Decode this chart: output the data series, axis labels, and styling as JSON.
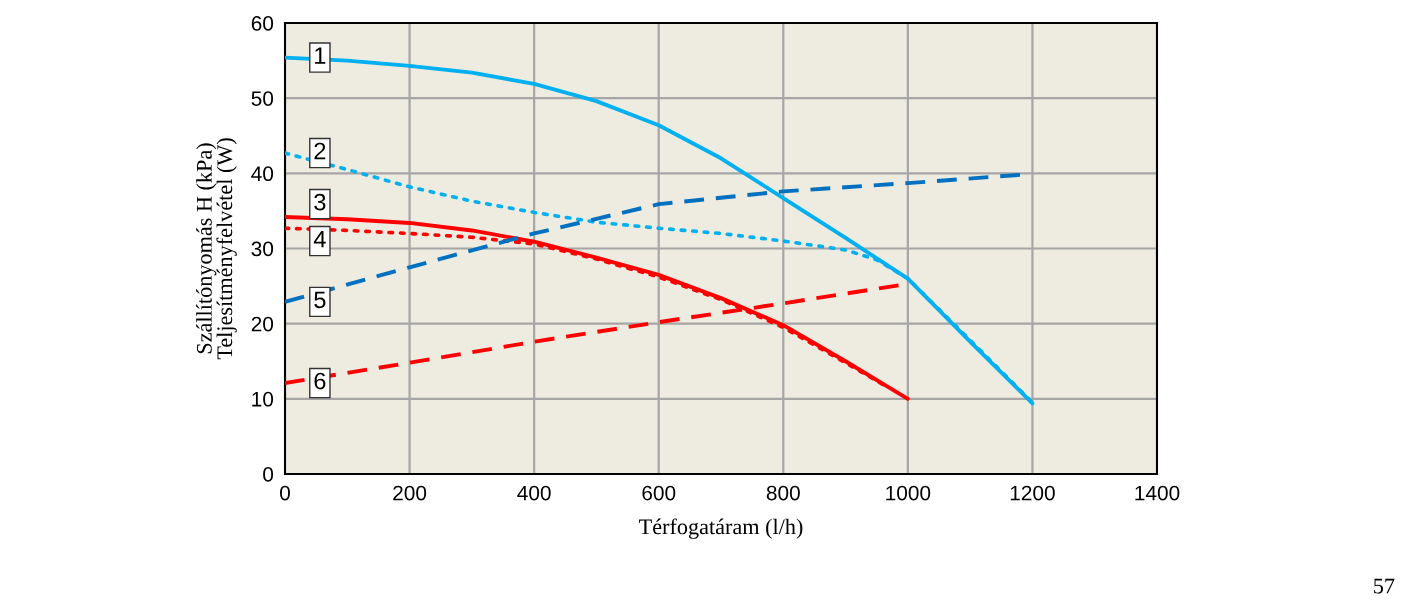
{
  "chart_data": {
    "type": "line",
    "xlabel": "Térfogatáram (l/h)",
    "ylabel": "Szállítónyomás H (kPa)\nTeljesítményfelvétel (W)",
    "xlim": [
      0,
      1400
    ],
    "xticks": [
      0,
      200,
      400,
      600,
      800,
      1000,
      1200,
      1400
    ],
    "ylim": [
      0,
      60
    ],
    "yticks": [
      0,
      10,
      20,
      30,
      40,
      50,
      60
    ],
    "grid": true,
    "legend": false,
    "marker": "none",
    "annotations": [
      "57"
    ],
    "series": [
      {
        "name": "1",
        "color": "#00b0f0",
        "line_style": "solid",
        "x": [
          0,
          100,
          200,
          300,
          400,
          500,
          600,
          700,
          800,
          900,
          1000,
          1100,
          1200
        ],
        "values": [
          55.4,
          55.0,
          54.3,
          53.4,
          51.9,
          49.6,
          46.4,
          42.0,
          36.7,
          31.4,
          26.0,
          17.6,
          9.4
        ]
      },
      {
        "name": "2",
        "color": "#00b0f0",
        "line_style": "dotted",
        "x": [
          0,
          100,
          200,
          300,
          400,
          500,
          600,
          700,
          800,
          900,
          950,
          1000,
          1100,
          1200
        ],
        "values": [
          42.7,
          40.5,
          38.2,
          36.3,
          34.8,
          33.5,
          32.7,
          32.0,
          31.0,
          29.8,
          28.5,
          26.0,
          17.8,
          9.5
        ]
      },
      {
        "name": "3",
        "color": "#ff0000",
        "line_style": "solid",
        "x": [
          0,
          100,
          200,
          300,
          400,
          500,
          600,
          700,
          800,
          900,
          1000
        ],
        "values": [
          34.2,
          33.9,
          33.4,
          32.4,
          30.9,
          28.8,
          26.5,
          23.4,
          19.8,
          15.0,
          10.0
        ]
      },
      {
        "name": "4",
        "color": "#ff0000",
        "line_style": "dotted",
        "x": [
          0,
          100,
          200,
          300,
          400,
          500,
          600,
          700,
          800,
          900,
          960
        ],
        "values": [
          32.7,
          32.4,
          32.0,
          31.5,
          30.6,
          28.6,
          26.2,
          23.2,
          19.5,
          14.8,
          11.9
        ]
      },
      {
        "name": "5",
        "color": "#0070c0",
        "line_style": "dashed",
        "x": [
          0,
          200,
          400,
          600,
          800,
          1000,
          1180
        ],
        "values": [
          22.9,
          27.5,
          32.0,
          35.9,
          37.6,
          38.7,
          39.8
        ]
      },
      {
        "name": "6",
        "color": "#ff0000",
        "line_style": "dashed",
        "x": [
          0,
          200,
          400,
          600,
          800,
          985
        ],
        "values": [
          12.1,
          14.8,
          17.6,
          20.2,
          22.7,
          25.1
        ]
      }
    ]
  }
}
